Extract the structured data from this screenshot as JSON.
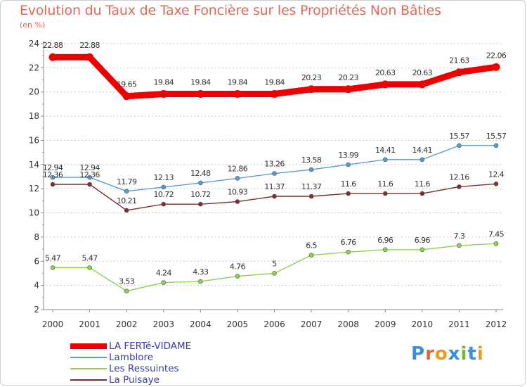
{
  "header": {
    "title": "Evolution du Taux de Taxe Foncière sur les Propriétés Non Bâties",
    "unit": "(en %)"
  },
  "colors": {
    "title": "#e06a5a",
    "legend_text": "#3a3ab0",
    "axis": "#8a8a8a",
    "grid": "#c8c8c8"
  },
  "logo": {
    "text": "Proxiti",
    "letter_colors": [
      "#3a8fd8",
      "#e0653a",
      "#ea9c22",
      "#3a8fd8",
      "#76b82a",
      "#3a8fd8",
      "#ea9c22"
    ]
  },
  "chart_data": {
    "type": "line",
    "title": "Evolution du Taux de Taxe Foncière sur les Propriétés Non Bâties",
    "ylabel": "(en %)",
    "xlabel": "",
    "ylim": [
      2,
      24
    ],
    "yticks": [
      2,
      4,
      6,
      8,
      10,
      12,
      14,
      16,
      18,
      20,
      22,
      24
    ],
    "grid": "horizontal-dashed",
    "legend_position": "bottom-left",
    "x": [
      "2000",
      "2001",
      "2002",
      "2003",
      "2004",
      "2005",
      "2006",
      "2007",
      "2008",
      "2009",
      "2010",
      "2011",
      "2012"
    ],
    "series": [
      {
        "name": "LA FERTé-VIDAME",
        "color": "#ee0000",
        "emphasis": true,
        "values": [
          22.88,
          22.88,
          19.65,
          19.84,
          19.84,
          19.84,
          19.84,
          20.23,
          20.23,
          20.63,
          20.63,
          21.63,
          22.06
        ],
        "labels": [
          "22.88",
          "22.88",
          "19.65",
          "19.84",
          "19.84",
          "19.84",
          "19.84",
          "20.23",
          "20.23",
          "20.63",
          "20.63",
          "21.63",
          "22.06"
        ]
      },
      {
        "name": "Lamblore",
        "color": "#5b9bd5",
        "emphasis": false,
        "values": [
          12.94,
          12.94,
          11.79,
          12.13,
          12.48,
          12.86,
          13.26,
          13.58,
          13.99,
          14.41,
          14.41,
          15.57,
          15.57
        ],
        "labels": [
          "12.94",
          "12.94",
          "11.79",
          "12.13",
          "12.48",
          "12.86",
          "13.26",
          "13.58",
          "13.99",
          "14.41",
          "14.41",
          "15.57",
          "15.57"
        ]
      },
      {
        "name": "Les Ressuintes",
        "color": "#92d050",
        "emphasis": false,
        "values": [
          5.47,
          5.47,
          3.53,
          4.24,
          4.33,
          4.76,
          5.0,
          6.5,
          6.76,
          6.96,
          6.96,
          7.3,
          7.45
        ],
        "labels": [
          "5.47",
          "5.47",
          "3.53",
          "4.24",
          "4.33",
          "4.76",
          "5",
          "6.5",
          "6.76",
          "6.96",
          "6.96",
          "7.3",
          "7.45"
        ]
      },
      {
        "name": "La Puisaye",
        "color": "#7b2f2f",
        "emphasis": false,
        "values": [
          12.36,
          12.36,
          10.21,
          10.72,
          10.72,
          10.93,
          11.37,
          11.37,
          11.6,
          11.6,
          11.6,
          12.16,
          12.4
        ],
        "labels": [
          "12.36",
          "12.36",
          "10.21",
          "10.72",
          "10.72",
          "10.93",
          "11.37",
          "11.37",
          "11.6",
          "11.6",
          "11.6",
          "12.16",
          "12.4"
        ]
      }
    ]
  }
}
